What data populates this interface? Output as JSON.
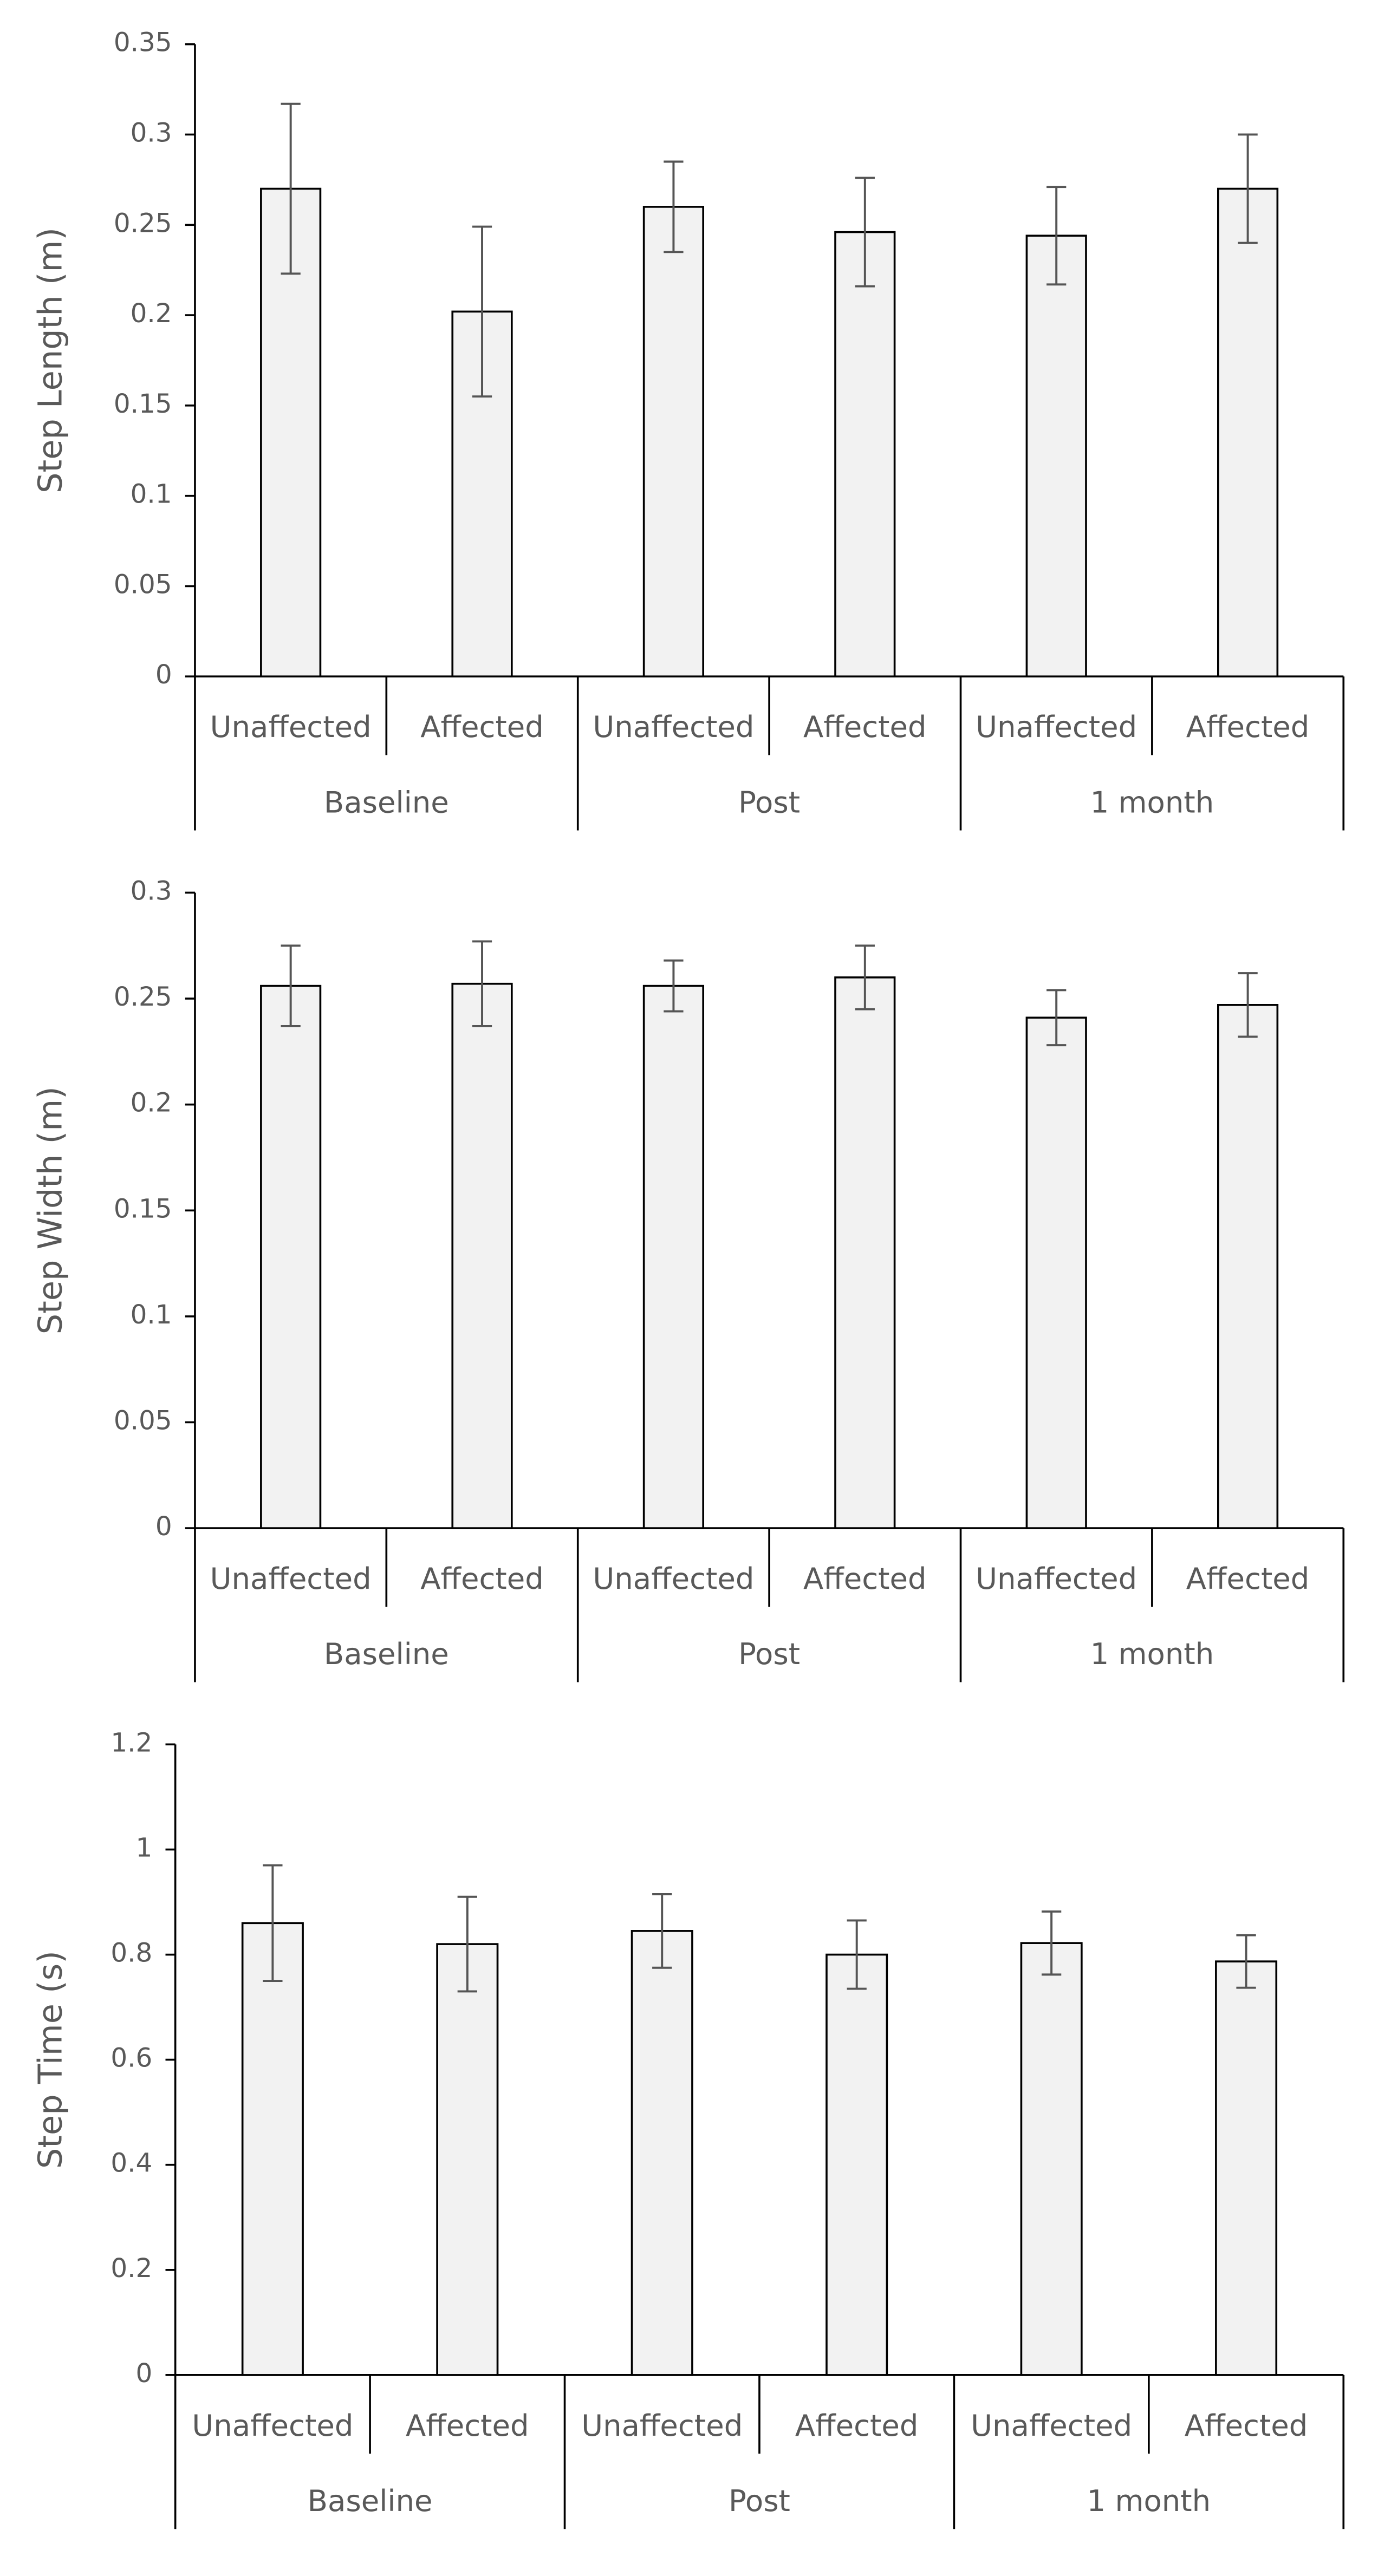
{
  "chart_data": [
    {
      "type": "bar",
      "y_label": "Step Length (m)",
      "color": "#f2f2f2",
      "categories": [
        "Unaffected",
        "Affected",
        "Unaffected",
        "Affected",
        "Unaffected",
        "Affected"
      ],
      "groups": [
        "Baseline",
        "Post",
        "1 month"
      ],
      "values": [
        0.27,
        0.202,
        0.26,
        0.246,
        0.244,
        0.27
      ],
      "errors": [
        0.047,
        0.047,
        0.025,
        0.03,
        0.027,
        0.03
      ],
      "ylim": [
        0,
        0.35
      ],
      "yticks": [
        0,
        0.05,
        0.1,
        0.15,
        0.2,
        0.25,
        0.3,
        0.35
      ],
      "grid": false
    },
    {
      "type": "bar",
      "y_label": "Step Width (m)",
      "color": "#f2f2f2",
      "categories": [
        "Unaffected",
        "Affected",
        "Unaffected",
        "Affected",
        "Unaffected",
        "Affected"
      ],
      "groups": [
        "Baseline",
        "Post",
        "1 month"
      ],
      "values": [
        0.256,
        0.257,
        0.256,
        0.26,
        0.241,
        0.247
      ],
      "errors": [
        0.019,
        0.02,
        0.012,
        0.015,
        0.013,
        0.015
      ],
      "ylim": [
        0,
        0.3
      ],
      "yticks": [
        0,
        0.05,
        0.1,
        0.15,
        0.2,
        0.25,
        0.3
      ],
      "grid": false
    },
    {
      "type": "bar",
      "y_label": "Step Time (s)",
      "color": "#f2f2f2",
      "categories": [
        "Unaffected",
        "Affected",
        "Unaffected",
        "Affected",
        "Unaffected",
        "Affected"
      ],
      "groups": [
        "Baseline",
        "Post",
        "1 month"
      ],
      "values": [
        0.86,
        0.82,
        0.845,
        0.8,
        0.822,
        0.787
      ],
      "errors": [
        0.11,
        0.09,
        0.07,
        0.065,
        0.06,
        0.05
      ],
      "ylim": [
        0,
        1.2
      ],
      "yticks": [
        0,
        0.2,
        0.4,
        0.6,
        0.8,
        1,
        1.2
      ],
      "grid": false
    }
  ]
}
